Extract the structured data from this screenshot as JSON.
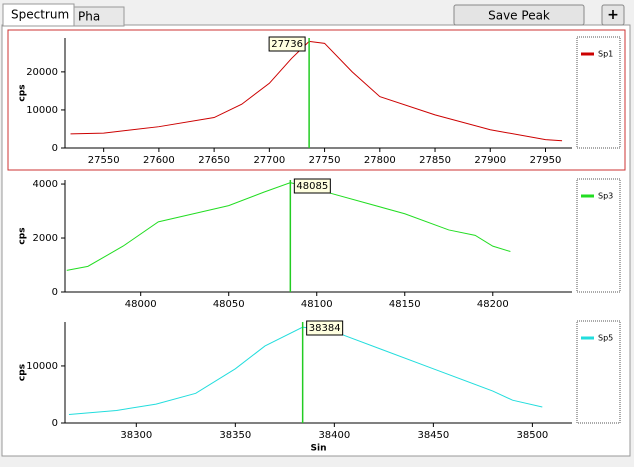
{
  "tabs": [
    "Spectrum",
    "Pha"
  ],
  "buttons": {
    "save": "Save Peak",
    "add": "+"
  },
  "chart_data": [
    {
      "type": "line",
      "ylabel": "cps",
      "xlim": [
        27515,
        27974
      ],
      "ylim": [
        0,
        28900
      ],
      "xticks": [
        27550,
        27600,
        27650,
        27700,
        27750,
        27800,
        27850,
        27900,
        27950
      ],
      "yticks": [
        0,
        10000,
        20000
      ],
      "cursor": 27736,
      "series": [
        {
          "name": "Sp1",
          "color": "#cc0000",
          "x": [
            27520,
            27550,
            27600,
            27650,
            27675,
            27700,
            27720,
            27736,
            27750,
            27775,
            27800,
            27850,
            27900,
            27950,
            27965
          ],
          "values": [
            3700,
            3900,
            5600,
            8000,
            11500,
            17000,
            23500,
            28000,
            27500,
            20000,
            13500,
            8700,
            4800,
            2200,
            1900
          ]
        }
      ]
    },
    {
      "type": "line",
      "ylabel": "cps",
      "xlim": [
        47957,
        48245
      ],
      "ylim": [
        0,
        4150
      ],
      "xticks": [
        48000,
        48050,
        48100,
        48150,
        48200
      ],
      "yticks": [
        0,
        2000,
        4000
      ],
      "cursor": 48085,
      "series": [
        {
          "name": "Sp3",
          "color": "#22dd22",
          "x": [
            47958,
            47970,
            47990,
            48010,
            48030,
            48050,
            48070,
            48085,
            48100,
            48150,
            48175,
            48190,
            48200,
            48210
          ],
          "values": [
            800,
            950,
            1700,
            2600,
            2900,
            3200,
            3700,
            4050,
            3800,
            2900,
            2300,
            2100,
            1700,
            1500
          ]
        }
      ]
    },
    {
      "type": "line",
      "ylabel": "cps",
      "xlabel": "Sin",
      "xlim": [
        38264,
        38520
      ],
      "ylim": [
        0,
        17700
      ],
      "xticks": [
        38300,
        38350,
        38400,
        38450,
        38500
      ],
      "yticks": [
        0,
        10000
      ],
      "cursor": 38384,
      "series": [
        {
          "name": "Sp5",
          "color": "#22dddd",
          "x": [
            38266,
            38290,
            38310,
            38330,
            38350,
            38365,
            38384,
            38400,
            38450,
            38480,
            38490,
            38505
          ],
          "values": [
            1500,
            2200,
            3300,
            5200,
            9500,
            13500,
            16800,
            16000,
            9500,
            5600,
            4000,
            2800
          ]
        }
      ]
    }
  ]
}
